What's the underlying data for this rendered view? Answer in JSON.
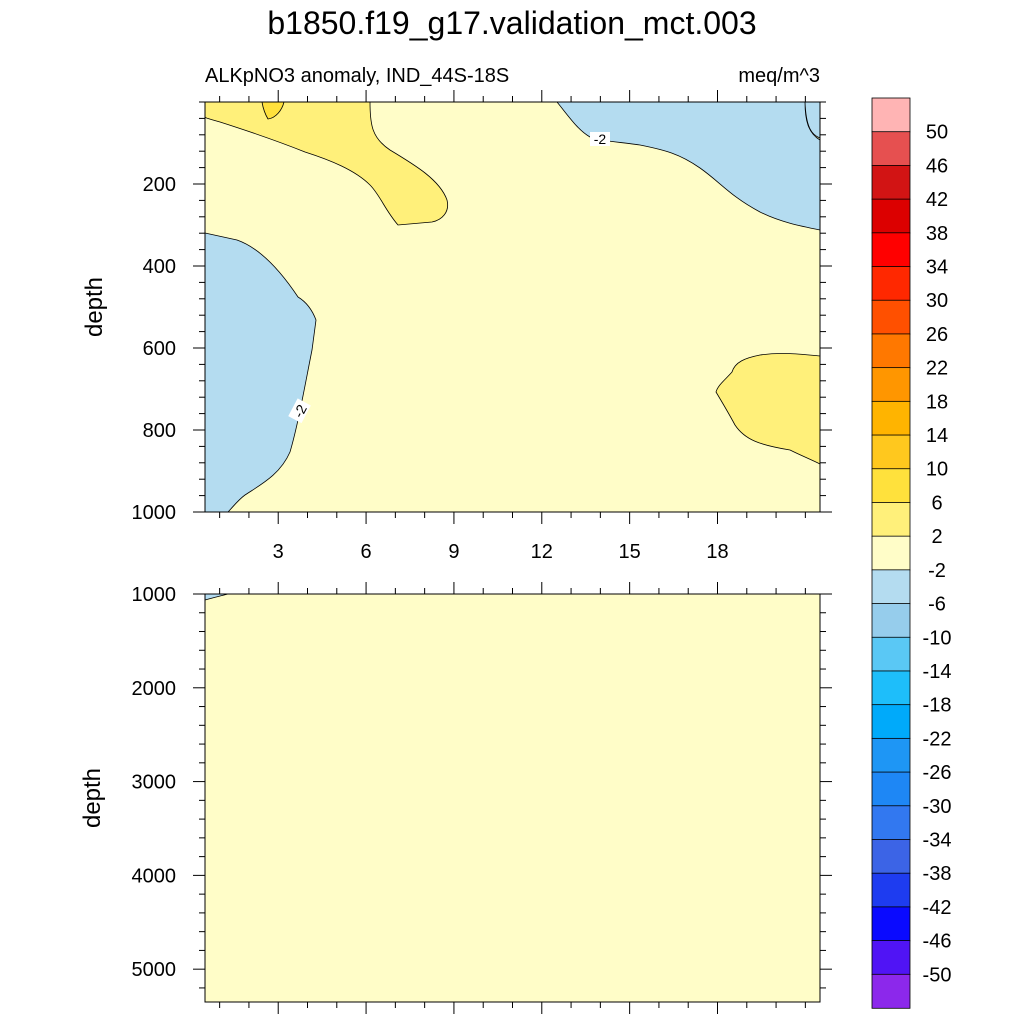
{
  "title": "b1850.f19_g17.validation_mct.003",
  "subtitle_left": "ALKpNO3 anomaly, IND_44S-18S",
  "subtitle_right": "meq/m^3",
  "chart_data": {
    "type": "contour",
    "variable": "ALKpNO3 anomaly",
    "region": "IND_44S-18S",
    "units": "meq/m^3",
    "x_axis": {
      "range": [
        0.5,
        21.5
      ],
      "major_ticks": [
        3,
        6,
        9,
        12,
        15,
        18
      ],
      "tick_labels": [
        "3",
        "6",
        "9",
        "12",
        "15",
        "18"
      ]
    },
    "panels": [
      {
        "name": "upper",
        "ylabel": "depth",
        "ylim": [
          1000,
          0
        ],
        "y_range_shown": [
          5,
          1000
        ],
        "y_ticks": [
          200,
          400,
          600,
          800,
          1000
        ],
        "y_tick_labels": [
          "200",
          "400",
          "600",
          "800",
          "1000"
        ],
        "contour_labels": [
          "-2",
          "-2"
        ],
        "regions": [
          {
            "level_range": "-2 to 2",
            "description": "background everywhere"
          },
          {
            "level_range": "2 to 6",
            "description": "upper-left, depth 5-300, x 1-9"
          },
          {
            "level_range": "6 to 10",
            "description": "small patch near x=2.5, depth 5-40"
          },
          {
            "level_range": "-6 to -2",
            "description": "upper-right, depth 5-320, x 12-21"
          },
          {
            "level_range": "-6 to -2",
            "description": "left side, depth 320-1000, x 0.5-5"
          },
          {
            "level_range": "2 to 6",
            "description": "right side, depth 620-890, x 17-21"
          }
        ]
      },
      {
        "name": "lower",
        "ylabel": "depth",
        "ylim": [
          5350,
          1000
        ],
        "y_ticks": [
          1000,
          2000,
          3000,
          4000,
          5000
        ],
        "y_tick_labels": [
          "1000",
          "2000",
          "3000",
          "4000",
          "5000"
        ],
        "regions": [
          {
            "level_range": "-2 to 2",
            "description": "entire panel"
          },
          {
            "level_range": "-6 to -2",
            "description": "tiny sliver at top-left corner near depth 1000"
          }
        ]
      }
    ],
    "colorbar": {
      "labels": [
        "50",
        "46",
        "42",
        "38",
        "34",
        "30",
        "26",
        "22",
        "18",
        "14",
        "10",
        "6",
        "2",
        "-2",
        "-6",
        "-10",
        "-14",
        "-18",
        "-22",
        "-26",
        "-30",
        "-34",
        "-38",
        "-42",
        "-46",
        "-50"
      ],
      "colors": [
        "#ffb4b4",
        "#e65050",
        "#d21414",
        "#dc0000",
        "#ff0000",
        "#ff2800",
        "#ff5000",
        "#ff7800",
        "#ff9600",
        "#ffb400",
        "#ffc81e",
        "#ffe13c",
        "#fff07a",
        "#fffdc8",
        "#b4dcf0",
        "#96cdec",
        "#5ac8f5",
        "#1ebefa",
        "#00aafa",
        "#1e96f5",
        "#1e87f5",
        "#3278f0",
        "#3c64e6",
        "#1e3cf0",
        "#0a0aff",
        "#5014f5",
        "#8c28eb"
      ]
    }
  }
}
